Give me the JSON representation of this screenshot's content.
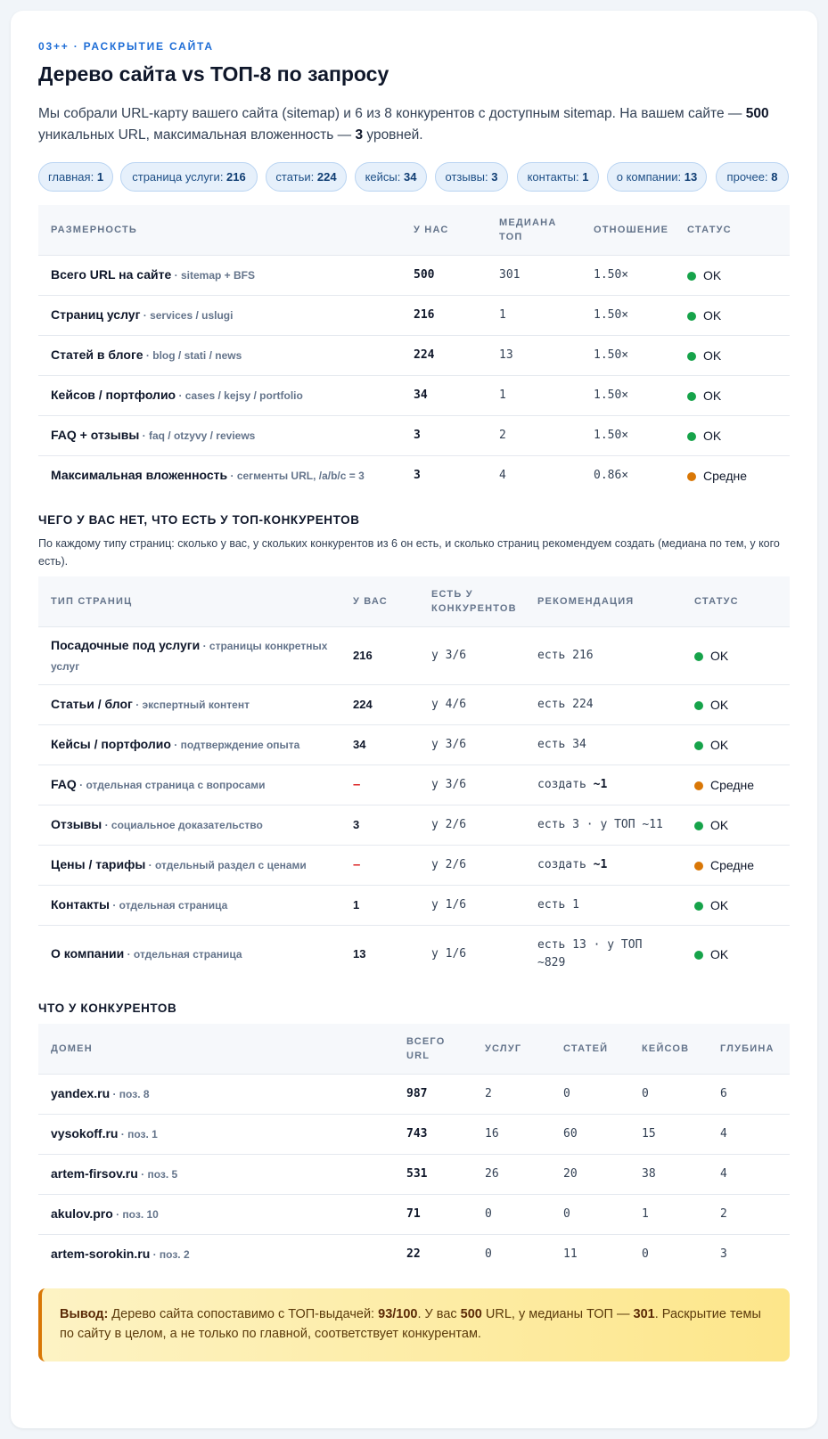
{
  "header": {
    "eyebrow": "03++ · РАСКРЫТИЕ САЙТА",
    "title": "Дерево сайта vs ТОП-8 по запросу",
    "intro_a": "Мы собрали URL-карту вашего сайта (sitemap) и 6 из 8 конкурентов с доступным sitemap. На вашем сайте — ",
    "intro_total": "500",
    "intro_b": " уникальных URL, максимальная вложенность — ",
    "intro_depth": "3",
    "intro_c": " уровней."
  },
  "pills": [
    {
      "label": "главная: ",
      "value": "1"
    },
    {
      "label": "страница услуги: ",
      "value": "216"
    },
    {
      "label": "статьи: ",
      "value": "224"
    },
    {
      "label": "кейсы: ",
      "value": "34"
    },
    {
      "label": "отзывы: ",
      "value": "3"
    },
    {
      "label": "контакты: ",
      "value": "1"
    },
    {
      "label": "о компании: ",
      "value": "13"
    },
    {
      "label": "прочее: ",
      "value": "8"
    }
  ],
  "colors": {
    "ok": "#16a34a",
    "mid": "#d97706",
    "accent": "#1e6dd6"
  },
  "size_table": {
    "headers": [
      "РАЗМЕРНОСТЬ",
      "У НАС",
      "МЕДИАНА ТОП",
      "ОТНОШЕНИЕ",
      "СТАТУС"
    ],
    "rows": [
      {
        "name": "Всего URL на сайте",
        "sub": " · sitemap + BFS",
        "ours": "500",
        "median": "301",
        "ratio": "1.50×",
        "status": "OK",
        "level": "ok"
      },
      {
        "name": "Страниц услуг",
        "sub": " · services / uslugi",
        "ours": "216",
        "median": "1",
        "ratio": "1.50×",
        "status": "OK",
        "level": "ok"
      },
      {
        "name": "Статей в блоге",
        "sub": " · blog / stati / news",
        "ours": "224",
        "median": "13",
        "ratio": "1.50×",
        "status": "OK",
        "level": "ok"
      },
      {
        "name": "Кейсов / портфолио",
        "sub": " · cases / kejsy / portfolio",
        "ours": "34",
        "median": "1",
        "ratio": "1.50×",
        "status": "OK",
        "level": "ok"
      },
      {
        "name": "FAQ + отзывы",
        "sub": " · faq / otzyvy / reviews",
        "ours": "3",
        "median": "2",
        "ratio": "1.50×",
        "status": "OK",
        "level": "ok"
      },
      {
        "name": "Максимальная вложенность",
        "sub": " · сегменты URL, /a/b/c = 3",
        "ours": "3",
        "median": "4",
        "ratio": "0.86×",
        "status": "Средне",
        "level": "mid"
      }
    ]
  },
  "missing": {
    "title": "ЧЕГО У ВАС НЕТ, ЧТО ЕСТЬ У ТОП-КОНКУРЕНТОВ",
    "desc": "По каждому типу страниц: сколько у вас, у скольких конкурентов из 6 он есть, и сколько страниц рекомендуем создать (медиана по тем, у кого есть).",
    "headers": [
      "ТИП СТРАНИЦ",
      "У ВАС",
      "ЕСТЬ У КОНКУРЕНТОВ",
      "РЕКОМЕНДАЦИЯ",
      "СТАТУС"
    ],
    "rows": [
      {
        "name": "Посадочные под услуги",
        "sub": " · страницы конкретных услуг",
        "ours": "216",
        "have": "у 3/6",
        "rec": "есть 216",
        "rec_b": "",
        "status": "OK",
        "level": "ok"
      },
      {
        "name": "Статьи / блог",
        "sub": " · экспертный контент",
        "ours": "224",
        "have": "у 4/6",
        "rec": "есть 224",
        "rec_b": "",
        "status": "OK",
        "level": "ok"
      },
      {
        "name": "Кейсы / портфолио",
        "sub": " · подтверждение опыта",
        "ours": "34",
        "have": "у 3/6",
        "rec": "есть 34",
        "rec_b": "",
        "status": "OK",
        "level": "ok"
      },
      {
        "name": "FAQ",
        "sub": " · отдельная страница с вопросами",
        "ours": "–",
        "have": "у 3/6",
        "rec": "создать ",
        "rec_b": "~1",
        "status": "Средне",
        "level": "mid"
      },
      {
        "name": "Отзывы",
        "sub": " · социальное доказательство",
        "ours": "3",
        "have": "у 2/6",
        "rec": "есть 3 · у ТОП ~11",
        "rec_b": "",
        "status": "OK",
        "level": "ok"
      },
      {
        "name": "Цены / тарифы",
        "sub": " · отдельный раздел с ценами",
        "ours": "–",
        "have": "у 2/6",
        "rec": "создать ",
        "rec_b": "~1",
        "status": "Средне",
        "level": "mid"
      },
      {
        "name": "Контакты",
        "sub": " · отдельная страница",
        "ours": "1",
        "have": "у 1/6",
        "rec": "есть 1",
        "rec_b": "",
        "status": "OK",
        "level": "ok"
      },
      {
        "name": "О компании",
        "sub": " · отдельная страница",
        "ours": "13",
        "have": "у 1/6",
        "rec": "есть 13 · у ТОП ~829",
        "rec_b": "",
        "status": "OK",
        "level": "ok"
      }
    ]
  },
  "competitors": {
    "title": "ЧТО У КОНКУРЕНТОВ",
    "headers": [
      "ДОМЕН",
      "ВСЕГО URL",
      "УСЛУГ",
      "СТАТЕЙ",
      "КЕЙСОВ",
      "ГЛУБИНА"
    ],
    "rows": [
      {
        "domain": "yandex.ru",
        "pos": " · поз. 8",
        "total": "987",
        "services": "2",
        "articles": "0",
        "cases": "0",
        "depth": "6"
      },
      {
        "domain": "vysokoff.ru",
        "pos": " · поз. 1",
        "total": "743",
        "services": "16",
        "articles": "60",
        "cases": "15",
        "depth": "4"
      },
      {
        "domain": "artem-firsov.ru",
        "pos": " · поз. 5",
        "total": "531",
        "services": "26",
        "articles": "20",
        "cases": "38",
        "depth": "4"
      },
      {
        "domain": "akulov.pro",
        "pos": " · поз. 10",
        "total": "71",
        "services": "0",
        "articles": "0",
        "cases": "1",
        "depth": "2"
      },
      {
        "domain": "artem-sorokin.ru",
        "pos": " · поз. 2",
        "total": "22",
        "services": "0",
        "articles": "11",
        "cases": "0",
        "depth": "3"
      }
    ]
  },
  "conclusion": {
    "label": "Вывод:",
    "a": " Дерево сайта сопоставимо с ТОП-выдачей: ",
    "score": "93/100",
    "b": ". У вас ",
    "ours": "500",
    "c": " URL, у медианы ТОП — ",
    "median": "301",
    "d": ". Раскрытие темы по сайту в целом, а не только по главной, соответствует конкурентам."
  }
}
